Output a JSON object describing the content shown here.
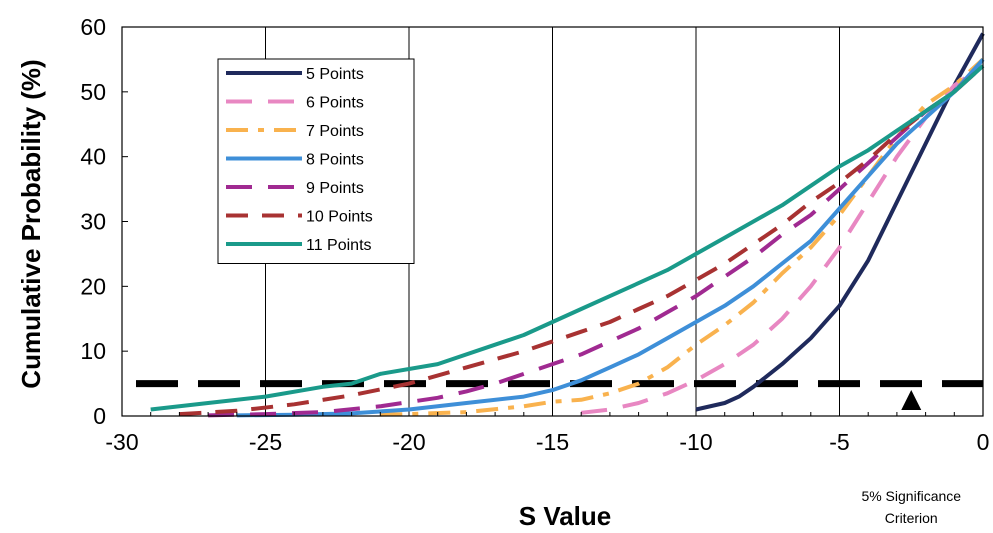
{
  "chart_data": {
    "type": "line",
    "xlabel": "S Value",
    "ylabel": "Cumulative Probability (%)",
    "xlim": [
      -30,
      0
    ],
    "ylim": [
      0,
      60
    ],
    "x_ticks": [
      "-30",
      "-25",
      "-20",
      "-15",
      "-10",
      "-5",
      "0"
    ],
    "y_ticks": [
      "0",
      "10",
      "20",
      "30",
      "40",
      "50",
      "60"
    ],
    "grid": "vertical",
    "legend": "top-left",
    "series": [
      {
        "name": "5 Points",
        "color": "#1f2a5c",
        "dash": "solid",
        "points": [
          [
            -10,
            1
          ],
          [
            -9,
            2
          ],
          [
            -8.5,
            3
          ],
          [
            -8,
            4.5
          ],
          [
            -7,
            8
          ],
          [
            -6,
            12
          ],
          [
            -5,
            17
          ],
          [
            -4,
            24
          ],
          [
            -3,
            33
          ],
          [
            -2,
            42
          ],
          [
            -1,
            51
          ],
          [
            0,
            59
          ]
        ]
      },
      {
        "name": "6 Points",
        "color": "#e887c2",
        "dash": "dash",
        "points": [
          [
            -14,
            0.5
          ],
          [
            -13,
            1
          ],
          [
            -12,
            2
          ],
          [
            -11,
            3.5
          ],
          [
            -10,
            5.5
          ],
          [
            -9,
            8
          ],
          [
            -8,
            11
          ],
          [
            -7,
            15
          ],
          [
            -6,
            20
          ],
          [
            -5,
            26
          ],
          [
            -4,
            33
          ],
          [
            -3,
            40
          ],
          [
            -2,
            46
          ],
          [
            -1,
            51
          ],
          [
            0,
            54
          ]
        ]
      },
      {
        "name": "7 Points",
        "color": "#f9b24e",
        "dash": "dashdot",
        "points": [
          [
            -21,
            0.2
          ],
          [
            -20,
            0.3
          ],
          [
            -18,
            0.6
          ],
          [
            -16,
            1.5
          ],
          [
            -15,
            2.2
          ],
          [
            -14,
            2.5
          ],
          [
            -13,
            3.5
          ],
          [
            -12,
            5
          ],
          [
            -11,
            7.5
          ],
          [
            -10,
            11
          ],
          [
            -9,
            14
          ],
          [
            -8,
            17.5
          ],
          [
            -7,
            22
          ],
          [
            -6,
            26
          ],
          [
            -5,
            31
          ],
          [
            -4,
            37
          ],
          [
            -3,
            43
          ],
          [
            -2,
            48
          ],
          [
            -1,
            51
          ],
          [
            0,
            55
          ]
        ]
      },
      {
        "name": "8 Points",
        "color": "#3e8fd8",
        "dash": "solid",
        "points": [
          [
            -26,
            0.1
          ],
          [
            -24,
            0.2
          ],
          [
            -22,
            0.4
          ],
          [
            -20,
            1
          ],
          [
            -18,
            2
          ],
          [
            -16,
            3
          ],
          [
            -15,
            4
          ],
          [
            -14,
            5.5
          ],
          [
            -13,
            7.5
          ],
          [
            -12,
            9.5
          ],
          [
            -11,
            12
          ],
          [
            -10,
            14.5
          ],
          [
            -9,
            17
          ],
          [
            -8,
            20
          ],
          [
            -7,
            23.5
          ],
          [
            -6,
            27
          ],
          [
            -5,
            32
          ],
          [
            -4,
            37
          ],
          [
            -3,
            42
          ],
          [
            -2,
            46
          ],
          [
            -1,
            50
          ],
          [
            0,
            55
          ]
        ]
      },
      {
        "name": "9 Points",
        "color": "#a02a91",
        "dash": "dash",
        "points": [
          [
            -27,
            0.1
          ],
          [
            -25,
            0.3
          ],
          [
            -23,
            0.6
          ],
          [
            -21,
            1.5
          ],
          [
            -19,
            2.8
          ],
          [
            -18,
            3.8
          ],
          [
            -17,
            5
          ],
          [
            -16,
            6.5
          ],
          [
            -15,
            8
          ],
          [
            -14,
            9.5
          ],
          [
            -13,
            11.5
          ],
          [
            -12,
            13.5
          ],
          [
            -11,
            16
          ],
          [
            -10,
            18.5
          ],
          [
            -9,
            21.5
          ],
          [
            -8,
            24.5
          ],
          [
            -7,
            28
          ],
          [
            -6,
            31
          ],
          [
            -5,
            35
          ],
          [
            -4,
            39
          ],
          [
            -3,
            43
          ],
          [
            -2,
            47
          ],
          [
            -1,
            50
          ],
          [
            0,
            54
          ]
        ]
      },
      {
        "name": "10 Points",
        "color": "#a83232",
        "dash": "longdash",
        "points": [
          [
            -28,
            0.3
          ],
          [
            -26,
            0.8
          ],
          [
            -24,
            1.8
          ],
          [
            -22,
            3.2
          ],
          [
            -20,
            5
          ],
          [
            -18,
            7.5
          ],
          [
            -16,
            10
          ],
          [
            -14,
            13
          ],
          [
            -13,
            14.5
          ],
          [
            -12,
            16.5
          ],
          [
            -11,
            18.5
          ],
          [
            -10,
            21
          ],
          [
            -9,
            23.5
          ],
          [
            -8,
            26.5
          ],
          [
            -7,
            29.5
          ],
          [
            -6,
            33
          ],
          [
            -5,
            36
          ],
          [
            -4,
            39.5
          ],
          [
            -3,
            43.5
          ],
          [
            -2,
            47
          ],
          [
            -1,
            50
          ],
          [
            0,
            54
          ]
        ]
      },
      {
        "name": "11 Points",
        "color": "#1a9a8a",
        "dash": "solid",
        "points": [
          [
            -29,
            1
          ],
          [
            -27,
            2
          ],
          [
            -25,
            3
          ],
          [
            -23,
            4.5
          ],
          [
            -22,
            5
          ],
          [
            -21,
            6.5
          ],
          [
            -19,
            8
          ],
          [
            -17,
            11
          ],
          [
            -16,
            12.5
          ],
          [
            -15,
            14.5
          ],
          [
            -14,
            16.5
          ],
          [
            -13,
            18.5
          ],
          [
            -12,
            20.5
          ],
          [
            -11,
            22.5
          ],
          [
            -10,
            25
          ],
          [
            -9,
            27.5
          ],
          [
            -8,
            30
          ],
          [
            -7,
            32.5
          ],
          [
            -6,
            35.5
          ],
          [
            -5,
            38.5
          ],
          [
            -4,
            41
          ],
          [
            -3,
            44
          ],
          [
            -2,
            47
          ],
          [
            -1,
            50
          ],
          [
            0,
            54
          ]
        ]
      }
    ],
    "reference_line": {
      "y": 5,
      "color": "#000000"
    },
    "annotation": {
      "x": -2.5,
      "line1": "5% Significance",
      "line2": "Criterion"
    }
  }
}
